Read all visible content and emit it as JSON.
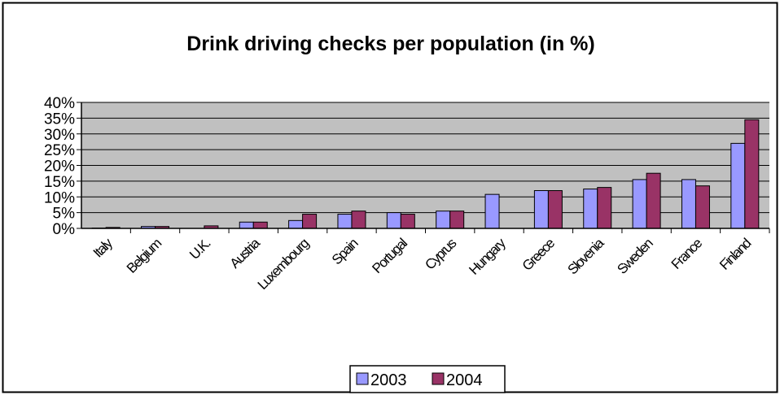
{
  "chart_data": {
    "type": "bar",
    "title": "Drink driving checks per population (in %)",
    "xlabel": "",
    "ylabel": "",
    "ylim": [
      0,
      40
    ],
    "yticks": [
      "0%",
      "5%",
      "10%",
      "15%",
      "20%",
      "25%",
      "30%",
      "35%",
      "40%"
    ],
    "grid": true,
    "legend_position": "bottom",
    "categories": [
      "Italy",
      "Belgium",
      "U.K.",
      "Austria",
      "Luxembourg",
      "Spain",
      "Portugal",
      "Cyprus",
      "Hungary",
      "Greece",
      "Slovenia",
      "Sweden",
      "France",
      "Finland"
    ],
    "series": [
      {
        "name": "2003",
        "color": "#9999ff",
        "values": [
          0.1,
          0.6,
          0.0,
          2.0,
          2.5,
          4.5,
          5.0,
          5.5,
          10.8,
          12.0,
          12.5,
          15.5,
          15.5,
          27.0
        ]
      },
      {
        "name": "2004",
        "color": "#993366",
        "values": [
          0.3,
          0.6,
          0.8,
          2.0,
          4.5,
          5.5,
          4.5,
          5.5,
          null,
          12.0,
          13.0,
          17.5,
          13.5,
          34.5
        ]
      }
    ],
    "plot_background": "#c0c0c0",
    "gridline_color": "#000000"
  }
}
